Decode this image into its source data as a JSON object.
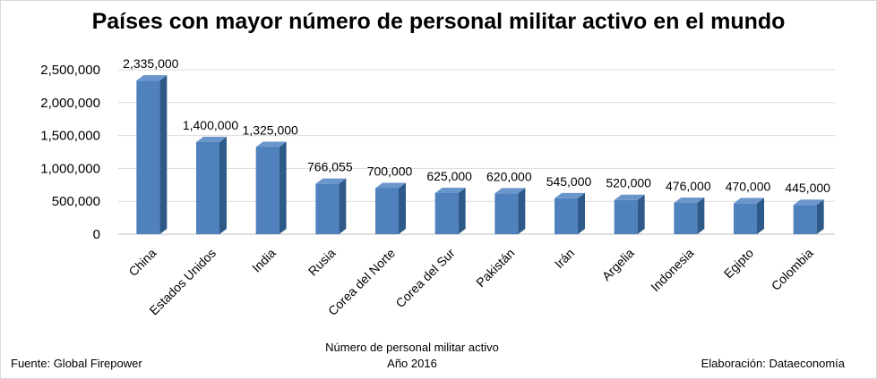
{
  "chart_data": {
    "type": "bar",
    "title": "Países con mayor número de personal militar activo en el mundo",
    "xlabel_line1": "Número de personal militar activo",
    "xlabel_line2": "Año 2016",
    "ylabel": "",
    "categories": [
      "China",
      "Estados Unidos",
      "India",
      "Rusia",
      "Corea del Norte",
      "Corea del Sur",
      "Pakistán",
      "Irán",
      "Argelia",
      "Indonesia",
      "Egipto",
      "Colombia"
    ],
    "values": [
      2335000,
      1400000,
      1325000,
      766055,
      700000,
      625000,
      620000,
      545000,
      520000,
      476000,
      470000,
      445000
    ],
    "value_labels": [
      "2,335,000",
      "1,400,000",
      "1,325,000",
      "766,055",
      "700,000",
      "625,000",
      "620,000",
      "545,000",
      "520,000",
      "476,000",
      "470,000",
      "445,000"
    ],
    "y_ticks": [
      0,
      500000,
      1000000,
      1500000,
      2000000,
      2500000
    ],
    "y_tick_labels": [
      "0",
      "500,000",
      "1,000,000",
      "1,500,000",
      "2,000,000",
      "2,500,000"
    ],
    "ylim": [
      0,
      2500000
    ],
    "grid": true,
    "legend": "none",
    "colors": {
      "bar_front": "#4f81bd",
      "bar_side": "#2e5a8a",
      "bar_top": "#6b96cc",
      "grid": "#d9d9d9"
    }
  },
  "footer": {
    "source": "Fuente: Global Firepower",
    "credit": "Elaboración: Dataeconomía"
  }
}
